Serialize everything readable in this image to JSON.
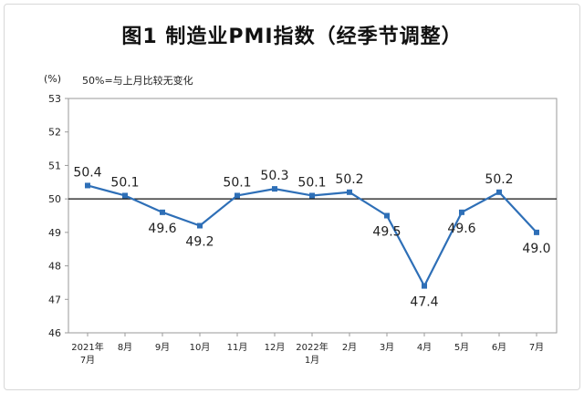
{
  "title": "图1 制造业PMI指数（经季节调整）",
  "chart_data": {
    "type": "line",
    "title": "图1 制造业PMI指数（经季节调整）",
    "unit_label": "(%)",
    "note": "50%=与上月比较无变化",
    "categories": [
      [
        "2021年",
        "7月"
      ],
      [
        "8月"
      ],
      [
        "9月"
      ],
      [
        "10月"
      ],
      [
        "11月"
      ],
      [
        "12月"
      ],
      [
        "2022年",
        "1月"
      ],
      [
        "2月"
      ],
      [
        "3月"
      ],
      [
        "4月"
      ],
      [
        "5月"
      ],
      [
        "6月"
      ],
      [
        "7月"
      ]
    ],
    "series": [
      {
        "values": [
          50.4,
          50.1,
          49.6,
          49.2,
          50.1,
          50.3,
          50.1,
          50.2,
          49.5,
          47.4,
          49.6,
          50.2,
          49.0
        ],
        "labels": [
          "50.4",
          "50.1",
          "49.6",
          "49.2",
          "50.1",
          "50.3",
          "50.1",
          "50.2",
          "49.5",
          "47.4",
          "49.6",
          "50.2",
          "49.0"
        ],
        "label_positions": [
          "above",
          "above",
          "below",
          "below",
          "above",
          "above",
          "above",
          "above",
          "below",
          "below",
          "below",
          "above",
          "below"
        ]
      }
    ],
    "ylim": [
      46,
      53
    ],
    "yticks": [
      46,
      47,
      48,
      49,
      50,
      51,
      52,
      53
    ],
    "reference_line": 50,
    "grid": false,
    "colors": {
      "line": "#2E6FB7",
      "marker": "#2E6FB7",
      "reference": "#111111",
      "axis": "#9a9a9a"
    }
  }
}
